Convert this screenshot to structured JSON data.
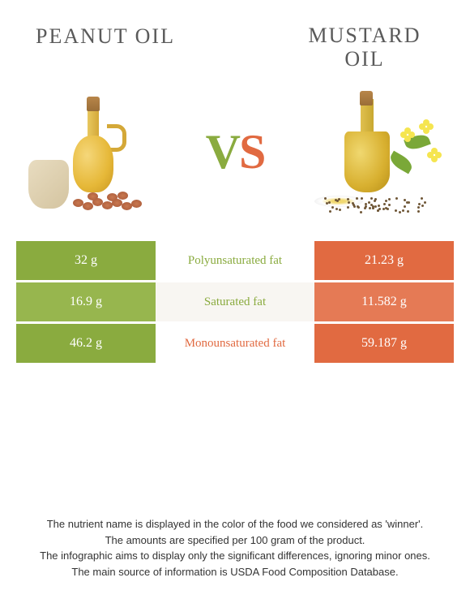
{
  "header": {
    "left_title": "PEANUT OIL",
    "right_title_line1": "MUSTARD",
    "right_title_line2": "OIL",
    "vs_v": "V",
    "vs_s": "S"
  },
  "colors": {
    "left_bar": "#8aab3f",
    "left_bar_alt": "#97b64e",
    "right_bar": "#e16a41",
    "right_bar_alt": "#e57a55",
    "mid_winner_left": "#8aab3f",
    "mid_winner_right": "#e16a41",
    "mid_bg": "#ffffff",
    "mid_bg_alt": "#f8f6f2"
  },
  "rows": [
    {
      "left": "32 g",
      "label": "Polyunsaturated fat",
      "right": "21.23 g",
      "winner": "left"
    },
    {
      "left": "16.9 g",
      "label": "Saturated fat",
      "right": "11.582 g",
      "winner": "left"
    },
    {
      "left": "46.2 g",
      "label": "Monounsaturated fat",
      "right": "59.187 g",
      "winner": "right"
    }
  ],
  "footer": {
    "line1": "The nutrient name is displayed in the color of the food we considered as 'winner'.",
    "line2": "The amounts are specified per 100 gram of the product.",
    "line3": "The infographic aims to display only the significant differences, ignoring minor ones.",
    "line4": "The main source of information is USDA Food Composition Database."
  }
}
